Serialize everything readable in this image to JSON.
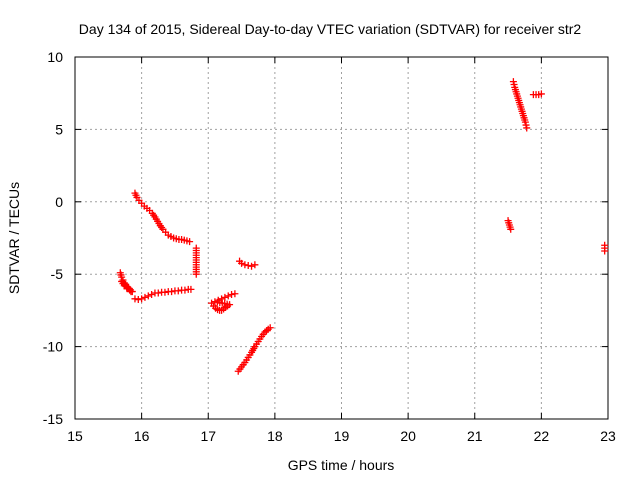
{
  "chart_data": {
    "type": "scatter",
    "title": "Day 134 of 2015, Sidereal Day-to-day VTEC variation (SDTVAR) for receiver str2",
    "xlabel": "GPS time / hours",
    "ylabel": "SDTVAR / TECUs",
    "xlim": [
      15,
      23
    ],
    "ylim": [
      -15,
      10
    ],
    "x_ticks": [
      "15",
      "16",
      "17",
      "18",
      "19",
      "20",
      "21",
      "22",
      "23"
    ],
    "y_ticks": [
      "10",
      "5",
      "0",
      "-5",
      "-10",
      "-15"
    ],
    "grid": true,
    "marker": "+",
    "point_color": "#ff0000",
    "series": [
      {
        "segments": [
          [
            [
              15.68,
              -4.9
            ],
            [
              15.7,
              -5.2
            ],
            [
              15.72,
              -5.4
            ],
            [
              15.74,
              -5.6
            ],
            [
              15.76,
              -5.7
            ],
            [
              15.78,
              -5.9
            ],
            [
              15.8,
              -6.0
            ],
            [
              15.82,
              -6.1
            ],
            [
              15.84,
              -6.2
            ],
            [
              15.86,
              -6.2
            ],
            [
              15.7,
              -5.5
            ],
            [
              15.74,
              -5.8
            ],
            [
              15.78,
              -6.0
            ]
          ],
          [
            [
              15.9,
              -6.7
            ],
            [
              15.95,
              -6.75
            ],
            [
              16.0,
              -6.7
            ],
            [
              16.05,
              -6.6
            ],
            [
              16.1,
              -6.5
            ],
            [
              16.15,
              -6.4
            ],
            [
              16.2,
              -6.3
            ],
            [
              16.25,
              -6.3
            ],
            [
              16.3,
              -6.25
            ],
            [
              16.35,
              -6.25
            ],
            [
              16.4,
              -6.2
            ],
            [
              16.45,
              -6.2
            ],
            [
              16.5,
              -6.15
            ],
            [
              16.55,
              -6.15
            ],
            [
              16.6,
              -6.1
            ],
            [
              16.65,
              -6.1
            ],
            [
              16.7,
              -6.05
            ],
            [
              16.74,
              -6.05
            ]
          ],
          [
            [
              15.9,
              0.6
            ],
            [
              15.93,
              0.3
            ],
            [
              15.96,
              0.1
            ],
            [
              16.0,
              -0.1
            ],
            [
              16.04,
              -0.3
            ],
            [
              16.08,
              -0.45
            ],
            [
              16.12,
              -0.6
            ],
            [
              16.16,
              -0.8
            ],
            [
              16.2,
              -1.05
            ],
            [
              16.24,
              -1.35
            ],
            [
              16.28,
              -1.65
            ],
            [
              16.32,
              -1.9
            ],
            [
              16.36,
              -2.1
            ],
            [
              16.4,
              -2.3
            ],
            [
              16.44,
              -2.4
            ],
            [
              16.48,
              -2.5
            ],
            [
              16.52,
              -2.55
            ],
            [
              16.56,
              -2.6
            ],
            [
              16.6,
              -2.6
            ],
            [
              16.64,
              -2.65
            ],
            [
              16.68,
              -2.7
            ],
            [
              16.72,
              -2.75
            ]
          ],
          [
            [
              16.82,
              -3.2
            ],
            [
              16.82,
              -5.0
            ]
          ],
          [
            [
              17.05,
              -7.0
            ],
            [
              17.08,
              -7.2
            ],
            [
              17.11,
              -7.35
            ],
            [
              17.14,
              -7.45
            ],
            [
              17.17,
              -7.5
            ],
            [
              17.2,
              -7.5
            ],
            [
              17.23,
              -7.4
            ],
            [
              17.26,
              -7.3
            ],
            [
              17.29,
              -7.2
            ],
            [
              17.32,
              -7.1
            ],
            [
              17.1,
              -6.9
            ],
            [
              17.15,
              -6.8
            ],
            [
              17.2,
              -6.7
            ],
            [
              17.25,
              -6.6
            ],
            [
              17.3,
              -6.5
            ],
            [
              17.35,
              -6.4
            ],
            [
              17.4,
              -6.35
            ]
          ],
          [
            [
              17.45,
              -11.7
            ],
            [
              17.5,
              -11.4
            ],
            [
              17.55,
              -11.1
            ],
            [
              17.6,
              -10.75
            ],
            [
              17.65,
              -10.4
            ],
            [
              17.7,
              -10.0
            ],
            [
              17.75,
              -9.65
            ],
            [
              17.8,
              -9.3
            ],
            [
              17.85,
              -9.0
            ],
            [
              17.9,
              -8.8
            ],
            [
              17.93,
              -8.7
            ]
          ],
          [
            [
              17.47,
              -4.1
            ],
            [
              17.5,
              -4.25
            ],
            [
              17.55,
              -4.35
            ],
            [
              17.6,
              -4.4
            ],
            [
              17.65,
              -4.45
            ],
            [
              17.7,
              -4.35
            ]
          ],
          [
            [
              21.5,
              -1.3
            ],
            [
              21.52,
              -1.6
            ],
            [
              21.54,
              -1.9
            ]
          ],
          [
            [
              21.58,
              8.3
            ],
            [
              21.6,
              7.9
            ],
            [
              21.62,
              7.6
            ],
            [
              21.64,
              7.3
            ],
            [
              21.66,
              7.0
            ],
            [
              21.68,
              6.7
            ],
            [
              21.7,
              6.4
            ],
            [
              21.72,
              6.1
            ],
            [
              21.74,
              5.8
            ],
            [
              21.76,
              5.5
            ],
            [
              21.78,
              5.1
            ]
          ],
          [
            [
              21.88,
              7.4
            ],
            [
              21.92,
              7.4
            ],
            [
              21.96,
              7.4
            ],
            [
              22.0,
              7.45
            ]
          ],
          [
            [
              22.95,
              -3.0
            ],
            [
              22.95,
              -3.4
            ]
          ]
        ]
      }
    ]
  }
}
